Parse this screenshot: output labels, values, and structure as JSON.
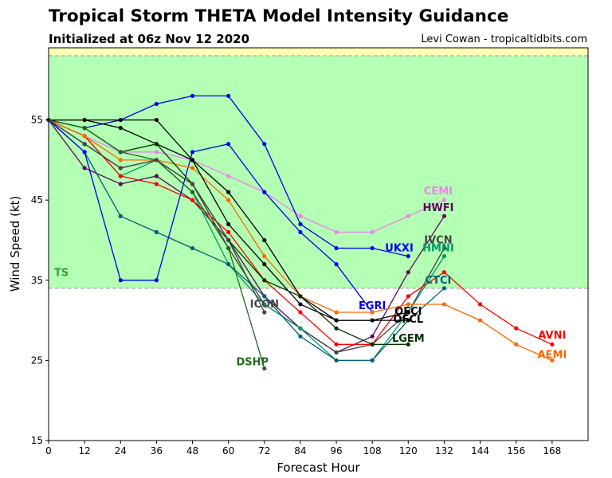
{
  "header": {
    "title": "Tropical Storm THETA Model Intensity Guidance",
    "subtitle": "Initialized at 06z Nov 12 2020",
    "credit": "Levi Cowan - tropicaltidbits.com"
  },
  "chart_data": {
    "type": "line",
    "xlabel": "Forecast Hour",
    "ylabel": "Wind Speed (kt)",
    "xlim": [
      0,
      180
    ],
    "ylim": [
      15,
      64
    ],
    "xticks": [
      0,
      12,
      24,
      36,
      48,
      60,
      72,
      84,
      96,
      108,
      120,
      132,
      144,
      156,
      168
    ],
    "yticks": [
      15,
      25,
      35,
      45,
      55
    ],
    "grid": false,
    "bands": [
      {
        "label": "TS",
        "from": 34,
        "to": 63,
        "color": "#b3ffb3",
        "label_color": "#3a9e3a"
      },
      {
        "label": "",
        "from": 63,
        "to": 64,
        "color": "#ffffb3",
        "label_color": "#999999"
      }
    ],
    "series": [
      {
        "name": "CEMI",
        "color": "#ee82ee",
        "x": [
          0,
          12,
          24,
          36,
          48,
          60,
          72,
          84,
          96,
          108,
          120,
          132
        ],
        "y": [
          55,
          53,
          51,
          51,
          50,
          48,
          46,
          43,
          41,
          41,
          43,
          45
        ],
        "label_x": 130,
        "label_y": 46.2
      },
      {
        "name": "HWFI",
        "color": "#5a0a5a",
        "x": [
          0,
          12,
          24,
          36,
          48,
          60,
          72,
          84,
          96,
          108,
          120,
          132
        ],
        "y": [
          55,
          49,
          47,
          48,
          45,
          40,
          33,
          29,
          26,
          28,
          36,
          43
        ],
        "label_x": 130,
        "label_y": 44.1
      },
      {
        "name": "IVCN",
        "color": "#444444",
        "x": [
          0,
          12,
          24,
          36,
          48,
          60,
          72,
          84,
          96,
          108,
          120,
          132
        ],
        "y": [
          55,
          52,
          49,
          50,
          47,
          39,
          32,
          29,
          26,
          27,
          31,
          39
        ],
        "label_x": 130,
        "label_y": 40.1
      },
      {
        "name": "HMNI",
        "color": "#009966",
        "x": [
          0,
          12,
          24,
          36,
          48,
          60,
          72,
          84,
          96,
          108,
          120,
          132
        ],
        "y": [
          55,
          53,
          48,
          50,
          46,
          37,
          32,
          29,
          25,
          25,
          31,
          38
        ],
        "label_x": 130,
        "label_y": 39.1
      },
      {
        "name": "CTCI",
        "color": "#00607a",
        "x": [
          0,
          12,
          24,
          36,
          48,
          60,
          72,
          84,
          96,
          108,
          120,
          132
        ],
        "y": [
          55,
          51,
          43,
          41,
          39,
          37,
          33,
          28,
          25,
          25,
          30,
          34
        ],
        "label_x": 130,
        "label_y": 35.1
      },
      {
        "name": "UKXI",
        "color": "#0000ee",
        "x": [
          0,
          12,
          24,
          36,
          48,
          60,
          72,
          84,
          96,
          108,
          120
        ],
        "y": [
          55,
          54,
          55,
          57,
          58,
          58,
          52,
          42,
          39,
          39,
          38
        ],
        "label_x": 117,
        "label_y": 39.1
      },
      {
        "name": "EGRI",
        "color": "#0000ee",
        "x": [
          0,
          12,
          24,
          36,
          48,
          60,
          72,
          84,
          96,
          108
        ],
        "y": [
          55,
          51,
          35,
          35,
          51,
          52,
          46,
          41,
          37,
          31
        ],
        "label_x": 108,
        "label_y": 31.9
      },
      {
        "name": "AVNI",
        "color": "#ff0000",
        "x": [
          0,
          12,
          24,
          36,
          48,
          60,
          72,
          84,
          96,
          108,
          120,
          132,
          144,
          156,
          168
        ],
        "y": [
          55,
          53,
          48,
          47,
          45,
          41,
          35,
          31,
          27,
          27,
          33,
          36,
          32,
          29,
          27
        ],
        "label_x": 168,
        "label_y": 28.2
      },
      {
        "name": "AEMI",
        "color": "#ff6600",
        "x": [
          0,
          12,
          24,
          36,
          48,
          60,
          72,
          84,
          96,
          108,
          120,
          132,
          144,
          156,
          168
        ],
        "y": [
          55,
          53,
          50,
          50,
          49,
          45,
          38,
          33,
          31,
          31,
          32,
          32,
          30,
          27,
          25
        ],
        "label_x": 168,
        "label_y": 25.8
      },
      {
        "name": "OFCL",
        "color": "#000000",
        "x": [
          0,
          12,
          24,
          36,
          48,
          60,
          72,
          84,
          96,
          108,
          120
        ],
        "y": [
          55,
          55,
          54,
          52,
          50,
          42,
          37,
          32,
          30,
          30,
          30
        ],
        "label_x": 120,
        "label_y": 30.2
      },
      {
        "name": "OFCI",
        "color": "#000000",
        "x": [
          0,
          12,
          24,
          36,
          48,
          60,
          72,
          84,
          96,
          108,
          120
        ],
        "y": [
          55,
          55,
          55,
          55,
          50,
          46,
          40,
          33,
          30,
          30,
          31
        ],
        "label_x": 120,
        "label_y": 31.2
      },
      {
        "name": "LGEM",
        "color": "#003300",
        "x": [
          0,
          12,
          24,
          36,
          48,
          60,
          72,
          84,
          96,
          108,
          120
        ],
        "y": [
          55,
          54,
          51,
          52,
          47,
          40,
          35,
          33,
          29,
          27,
          27
        ],
        "label_x": 120,
        "label_y": 27.8
      },
      {
        "name": "DSHP",
        "color": "#226622",
        "x": [
          0,
          12,
          24,
          36,
          48,
          60,
          72
        ],
        "y": [
          55,
          54,
          51,
          50,
          46,
          39,
          24
        ],
        "label_x": 68,
        "label_y": 24.9
      },
      {
        "name": "ICON",
        "color": "#444444",
        "x": [
          0,
          12,
          24,
          36,
          48,
          60,
          72
        ],
        "y": [
          55,
          52,
          49,
          50,
          47,
          40,
          31
        ],
        "label_x": 72,
        "label_y": 32.1
      }
    ]
  }
}
